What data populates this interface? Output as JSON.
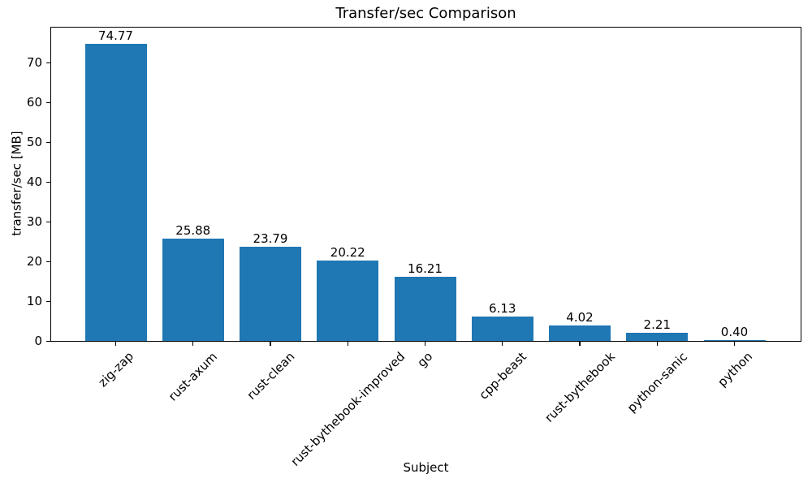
{
  "chart_data": {
    "type": "bar",
    "title": "Transfer/sec Comparison",
    "xlabel": "Subject",
    "ylabel": "transfer/sec [MB]",
    "categories": [
      "zig-zap",
      "rust-axum",
      "rust-clean",
      "rust-bythebook-improved",
      "go",
      "cpp-beast",
      "rust-bythebook",
      "python-sanic",
      "python"
    ],
    "values": [
      74.77,
      25.88,
      23.79,
      20.22,
      16.21,
      6.13,
      4.02,
      2.21,
      0.4
    ],
    "bar_value_labels": [
      "74.77",
      "25.88",
      "23.79",
      "20.22",
      "16.21",
      "6.13",
      "4.02",
      "2.21",
      "0.40"
    ],
    "yticks": [
      0,
      10,
      20,
      30,
      40,
      50,
      60,
      70
    ],
    "ylim": [
      0,
      79
    ],
    "xtick_rotation_deg": 45,
    "grid": false,
    "bar_color": "#1f77b4",
    "text_color": "#000000",
    "background_color": "#ffffff"
  }
}
